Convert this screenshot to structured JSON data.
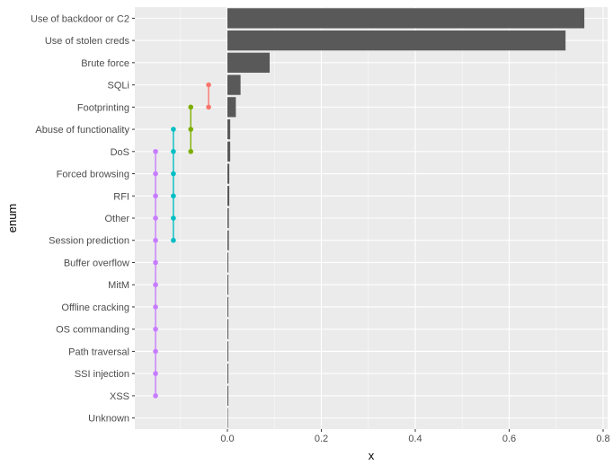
{
  "chart_data": {
    "type": "bar",
    "xlabel": "x",
    "ylabel": "enum",
    "xlim": [
      -0.2,
      0.8
    ],
    "x_ticks": [
      0.0,
      0.2,
      0.4,
      0.6,
      0.8
    ],
    "x_tick_labels": [
      "0.0",
      "0.2",
      "0.4",
      "0.6",
      "0.8"
    ],
    "grid": true,
    "legend": "none",
    "categories": [
      "Use of backdoor or C2",
      "Use of stolen creds",
      "Brute force",
      "SQLi",
      "Footprinting",
      "Abuse of functionality",
      "DoS",
      "Forced browsing",
      "RFI",
      "Other",
      "Session prediction",
      "Buffer overflow",
      "MitM",
      "Offline cracking",
      "OS commanding",
      "Path traversal",
      "SSI injection",
      "XSS",
      "Unknown"
    ],
    "values": [
      0.76,
      0.72,
      0.09,
      0.028,
      0.018,
      0.006,
      0.006,
      0.004,
      0.004,
      0.003,
      0.003,
      0.002,
      0.002,
      0.002,
      0.002,
      0.002,
      0.002,
      0.002,
      0.0
    ],
    "bar_color": "#595959",
    "groups": [
      {
        "color": "#F8766D",
        "x": -0.04,
        "from": "SQLi",
        "to": "Footprinting"
      },
      {
        "color": "#7CAE00",
        "x": -0.078,
        "from": "Footprinting",
        "to": "DoS"
      },
      {
        "color": "#00BFC4",
        "x": -0.115,
        "from": "Abuse of functionality",
        "to": "Session prediction"
      },
      {
        "color": "#C77CFF",
        "x": -0.153,
        "from": "DoS",
        "to": "XSS"
      }
    ]
  }
}
